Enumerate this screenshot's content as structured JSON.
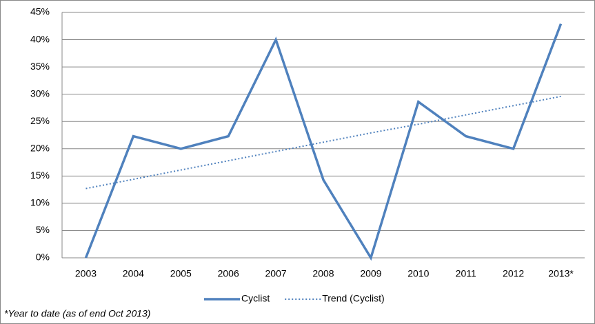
{
  "chart_data": {
    "type": "line",
    "categories": [
      "2003",
      "2004",
      "2005",
      "2006",
      "2007",
      "2008",
      "2009",
      "2010",
      "2011",
      "2012",
      "2013*"
    ],
    "series": [
      {
        "name": "Cyclist",
        "color": "#4f81bd",
        "line_style": "solid",
        "values": [
          0,
          22.3,
          20,
          22.3,
          40,
          14.3,
          0,
          28.6,
          22.3,
          20,
          42.9
        ]
      },
      {
        "name": "Trend (Cyclist)",
        "color": "#4f81bd",
        "line_style": "dotted",
        "values": [
          12.7,
          14.4,
          16.1,
          17.8,
          19.5,
          21.2,
          22.9,
          24.5,
          26.2,
          27.9,
          29.6
        ]
      }
    ],
    "ylim": [
      0,
      45
    ],
    "yticks": [
      {
        "value": 0,
        "label": "0%"
      },
      {
        "value": 5,
        "label": "5%"
      },
      {
        "value": 10,
        "label": "10%"
      },
      {
        "value": 15,
        "label": "15%"
      },
      {
        "value": 20,
        "label": "20%"
      },
      {
        "value": 25,
        "label": "25%"
      },
      {
        "value": 30,
        "label": "30%"
      },
      {
        "value": 35,
        "label": "35%"
      },
      {
        "value": 40,
        "label": "40%"
      },
      {
        "value": 45,
        "label": "45%"
      }
    ],
    "grid": true,
    "legend": "bottom",
    "annotation": "*Year to date (as of end Oct 2013)"
  }
}
